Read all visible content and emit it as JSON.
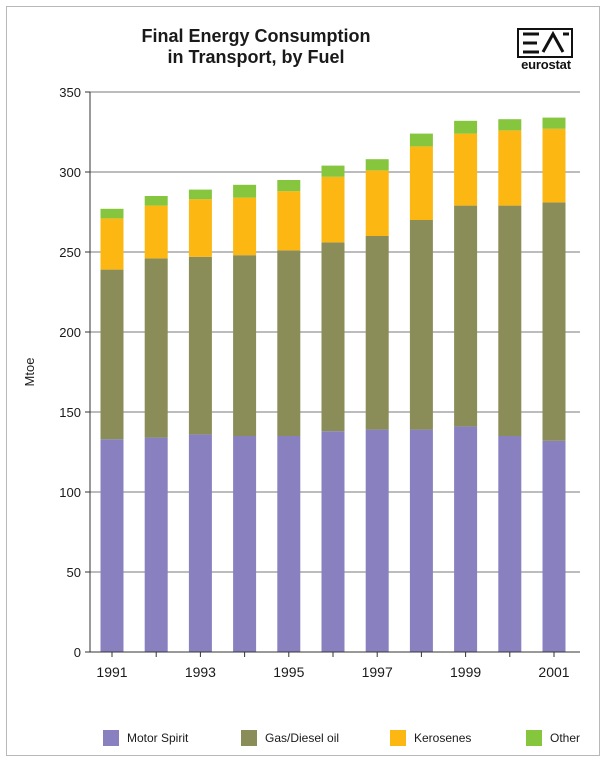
{
  "chart_data": {
    "type": "bar",
    "stacked": true,
    "title_lines": [
      "Final Energy Consumption",
      "in Transport, by Fuel"
    ],
    "ylabel": "Mtoe",
    "xlabel": "",
    "ylim": [
      0,
      350
    ],
    "yticks": [
      0,
      50,
      100,
      150,
      200,
      250,
      300,
      350
    ],
    "grid": true,
    "legend_position": "bottom",
    "categories": [
      "1991",
      "1992",
      "1993",
      "1994",
      "1995",
      "1996",
      "1997",
      "1998",
      "1999",
      "2000",
      "2001"
    ],
    "x_tick_labels": [
      "1991",
      "",
      "1993",
      "",
      "1995",
      "",
      "1997",
      "",
      "1999",
      "",
      "2001"
    ],
    "series": [
      {
        "name": "Motor Spirit",
        "color": "#8880bf",
        "values": [
          133,
          134,
          136,
          135,
          135,
          138,
          139,
          139,
          141,
          135,
          132
        ]
      },
      {
        "name": "Gas/Diesel oil",
        "color": "#8a8d58",
        "values": [
          106,
          112,
          111,
          113,
          116,
          118,
          121,
          131,
          138,
          144,
          149
        ]
      },
      {
        "name": "Kerosenes",
        "color": "#fcb712",
        "values": [
          32,
          33,
          36,
          36,
          37,
          41,
          41,
          46,
          45,
          47,
          46
        ]
      },
      {
        "name": "Other",
        "color": "#86c63f",
        "values": [
          6,
          6,
          6,
          8,
          7,
          7,
          7,
          8,
          8,
          7,
          7
        ]
      }
    ]
  },
  "logo": {
    "text": "eurostat"
  }
}
